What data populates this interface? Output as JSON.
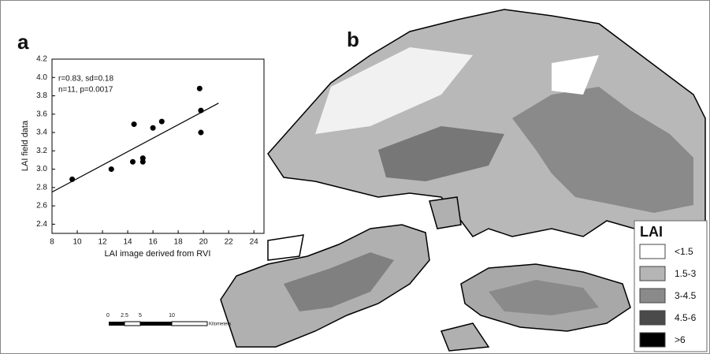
{
  "chart_data": {
    "type": "scatter",
    "panel_label": "a",
    "xlabel": "LAI image derived from RVI",
    "ylabel": "LAI field data",
    "annotations": [
      "r=0.83, sd=0.18",
      "n=11, p=0.0017"
    ],
    "x": [
      9.6,
      12.7,
      14.4,
      14.5,
      15.2,
      15.2,
      16.0,
      16.7,
      19.7,
      19.8,
      19.8
    ],
    "series": [
      {
        "name": "LAI",
        "color": "#000000",
        "values": [
          2.89,
          3.0,
          3.08,
          3.49,
          3.12,
          3.08,
          3.45,
          3.52,
          3.88,
          3.64,
          3.4
        ]
      }
    ],
    "fit_line": {
      "x": [
        8,
        21.2
      ],
      "y": [
        2.75,
        3.72
      ],
      "color": "#000000"
    },
    "xlim": [
      8,
      24.8
    ],
    "xticks": [
      8,
      10,
      12,
      14,
      16,
      18,
      20,
      22,
      24
    ],
    "ylim": [
      2.3,
      4.2
    ],
    "yticks": [
      2.4,
      2.6,
      2.8,
      {
        "value": 3,
        "label": "3.0"
      },
      3.2,
      3.4,
      3.6,
      3.8,
      {
        "value": 4,
        "label": "4.0"
      },
      4.2
    ]
  },
  "map": {
    "panel_label": "b",
    "legend": {
      "title": "LAI",
      "items": [
        {
          "label": "<1.5",
          "color": "#ffffff"
        },
        {
          "label": "1.5-3",
          "color": "#b5b5b5"
        },
        {
          "label": "3-4.5",
          "color": "#8a8a8a"
        },
        {
          "label": "4.5-6",
          "color": "#4a4a4a"
        },
        {
          "label": ">6",
          "color": "#000000"
        }
      ]
    },
    "scale_bar": {
      "labels": [
        "0",
        "2.5",
        "5",
        "10"
      ],
      "unit": "Kilometers"
    }
  }
}
